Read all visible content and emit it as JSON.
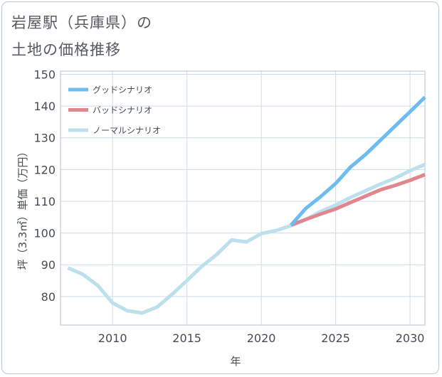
{
  "title_line1": "岩屋駅（兵庫県）の",
  "title_line2": "土地の価格推移",
  "chart_data": {
    "type": "line",
    "xlabel": "年",
    "ylabel": "坪（3.3㎡）単価（万円）",
    "xlim": [
      2006.5,
      2031
    ],
    "ylim": [
      71,
      151
    ],
    "xticks": [
      2010,
      2015,
      2020,
      2025,
      2030
    ],
    "yticks": [
      80,
      90,
      100,
      110,
      120,
      130,
      140,
      150
    ],
    "legend_position": "top-left",
    "series": [
      {
        "name": "グッドシナリオ",
        "color": "#6dbcf0",
        "x": [
          2022,
          2023,
          2024,
          2025,
          2026,
          2027,
          2028,
          2029,
          2030,
          2031
        ],
        "y": [
          102.5,
          107.8,
          111.5,
          115.6,
          120.8,
          124.7,
          129.2,
          133.7,
          138.2,
          142.8
        ]
      },
      {
        "name": "バッドシナリオ",
        "color": "#e0868e",
        "x": [
          2022,
          2023,
          2024,
          2025,
          2026,
          2027,
          2028,
          2029,
          2030,
          2031
        ],
        "y": [
          102.5,
          104.3,
          106.0,
          107.6,
          109.6,
          111.6,
          113.6,
          115.0,
          116.6,
          118.4
        ]
      },
      {
        "name": "ノーマルシナリオ",
        "color": "#bde0ee",
        "x": [
          2007,
          2008,
          2009,
          2010,
          2011,
          2012,
          2013,
          2014,
          2015,
          2016,
          2017,
          2018,
          2019,
          2020,
          2021,
          2022,
          2023,
          2024,
          2025,
          2026,
          2027,
          2028,
          2029,
          2030,
          2031
        ],
        "y": [
          89.0,
          87.0,
          83.5,
          78.0,
          75.5,
          74.8,
          76.7,
          80.7,
          85.0,
          89.5,
          93.2,
          97.8,
          97.2,
          99.8,
          100.8,
          102.3,
          104.3,
          106.8,
          108.8,
          111.2,
          113.3,
          115.4,
          117.3,
          119.6,
          121.6
        ]
      }
    ]
  }
}
